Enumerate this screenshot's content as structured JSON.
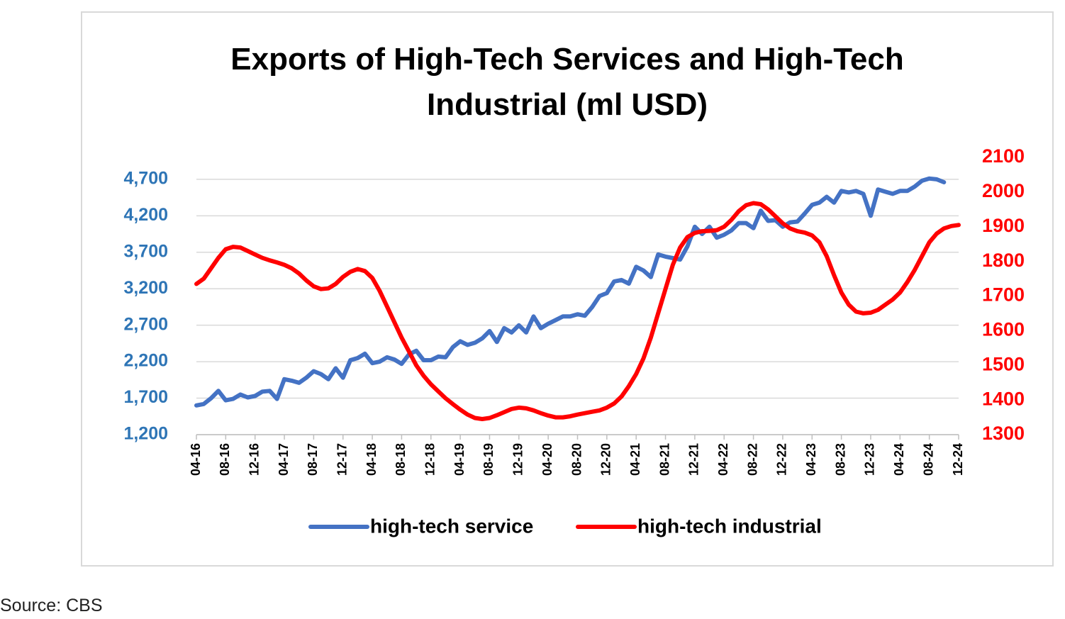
{
  "chart_data": {
    "type": "line",
    "title": "Exports of High-Tech Services and High-Tech Industrial (ml USD)",
    "source": "Source: CBS",
    "categories": [
      "04-16",
      null,
      null,
      null,
      "08-16",
      null,
      null,
      null,
      "12-16",
      null,
      null,
      null,
      "04-17",
      null,
      null,
      null,
      "08-17",
      null,
      null,
      null,
      "12-17",
      null,
      null,
      null,
      "04-18",
      null,
      null,
      null,
      "08-18",
      null,
      null,
      null,
      "12-18",
      null,
      null,
      null,
      "04-19",
      null,
      null,
      null,
      "08-19",
      null,
      null,
      null,
      "12-19",
      null,
      null,
      null,
      "04-20",
      null,
      null,
      null,
      "08-20",
      null,
      null,
      null,
      "12-20",
      null,
      null,
      null,
      "04-21",
      null,
      null,
      null,
      "08-21",
      null,
      null,
      null,
      "12-21",
      null,
      null,
      null,
      "04-22",
      null,
      null,
      null,
      "08-22",
      null,
      null,
      null,
      "12-22",
      null,
      null,
      null,
      "04-23",
      null,
      null,
      null,
      "08-23",
      null,
      null,
      null,
      "12-23",
      null,
      null,
      null,
      "04-24",
      null,
      null,
      null,
      "08-24",
      null,
      null,
      null,
      "12-24"
    ],
    "series": [
      {
        "name": "high-tech service",
        "color": "#4472c4",
        "axis": "y",
        "values": [
          1600,
          1620,
          1700,
          1800,
          1670,
          1690,
          1750,
          1710,
          1730,
          1790,
          1800,
          1690,
          1960,
          1940,
          1910,
          1980,
          2070,
          2030,
          1960,
          2110,
          1980,
          2220,
          2250,
          2310,
          2180,
          2200,
          2260,
          2230,
          2170,
          2300,
          2350,
          2220,
          2220,
          2270,
          2260,
          2400,
          2480,
          2430,
          2460,
          2520,
          2620,
          2470,
          2660,
          2600,
          2700,
          2600,
          2820,
          2660,
          2720,
          2770,
          2820,
          2820,
          2850,
          2830,
          2950,
          3100,
          3140,
          3300,
          3320,
          3270,
          3500,
          3450,
          3360,
          3670,
          3640,
          3620,
          3600,
          3780,
          4050,
          3950,
          4050,
          3900,
          3940,
          4000,
          4100,
          4100,
          4030,
          4270,
          4130,
          4140,
          4050,
          4110,
          4120,
          4230,
          4350,
          4380,
          4460,
          4380,
          4540,
          4520,
          4540,
          4500,
          4200,
          4560,
          4530,
          4500,
          4540,
          4540,
          4600,
          4680,
          4710,
          4700,
          4660,
          null,
          null
        ]
      },
      {
        "name": "high-tech industrial",
        "color": "#ff0000",
        "axis": "y2",
        "values": [
          1735,
          1750,
          1780,
          1810,
          1835,
          1842,
          1840,
          1830,
          1820,
          1810,
          1803,
          1797,
          1790,
          1780,
          1765,
          1745,
          1728,
          1720,
          1722,
          1735,
          1755,
          1770,
          1778,
          1772,
          1752,
          1715,
          1670,
          1625,
          1580,
          1540,
          1500,
          1470,
          1445,
          1425,
          1405,
          1388,
          1372,
          1358,
          1348,
          1345,
          1348,
          1356,
          1365,
          1374,
          1378,
          1376,
          1370,
          1362,
          1355,
          1350,
          1350,
          1353,
          1358,
          1362,
          1366,
          1370,
          1378,
          1390,
          1410,
          1440,
          1475,
          1520,
          1580,
          1650,
          1720,
          1790,
          1840,
          1870,
          1882,
          1887,
          1888,
          1890,
          1900,
          1920,
          1945,
          1962,
          1968,
          1965,
          1950,
          1930,
          1910,
          1895,
          1887,
          1883,
          1875,
          1855,
          1815,
          1760,
          1710,
          1675,
          1655,
          1650,
          1652,
          1660,
          1675,
          1690,
          1710,
          1740,
          1775,
          1815,
          1855,
          1880,
          1895,
          1902,
          1905
        ]
      }
    ],
    "ylim": [
      1200,
      5000
    ],
    "yticks": [
      {
        "value": 1200,
        "label": "1,200"
      },
      {
        "value": 1700,
        "label": "1,700"
      },
      {
        "value": 2200,
        "label": "2,200"
      },
      {
        "value": 2700,
        "label": "2,700"
      },
      {
        "value": 3200,
        "label": "3,200"
      },
      {
        "value": 3700,
        "label": "3,700"
      },
      {
        "value": 4200,
        "label": "4,200"
      },
      {
        "value": 4700,
        "label": "4,700"
      }
    ],
    "y2lim": [
      1300,
      2100
    ],
    "y2ticks": [
      1300,
      1400,
      1500,
      1600,
      1700,
      1800,
      1900,
      2000,
      2100
    ],
    "y_tick_color": "#2e75b6",
    "y2_tick_color": "#ff0000",
    "grid": true,
    "legend": "bottom"
  }
}
